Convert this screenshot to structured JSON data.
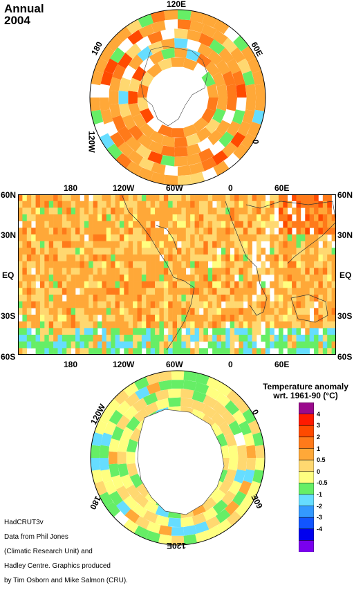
{
  "title": {
    "line1": "Annual",
    "line2": "2004"
  },
  "north_polar": {
    "labels": {
      "top": "120E",
      "upper_left": "180",
      "upper_right": "60E",
      "lower_left": "120W",
      "right": "0"
    }
  },
  "world_map": {
    "lat_labels": [
      "60N",
      "30N",
      "EQ",
      "30S",
      "60S"
    ],
    "lon_labels": [
      "180",
      "120W",
      "60W",
      "0",
      "60E"
    ]
  },
  "south_polar": {
    "labels": {
      "upper_left": "120W",
      "upper_right": "0",
      "lower_left": "180",
      "lower_right": "60E",
      "bottom": "120E"
    }
  },
  "legend": {
    "title_line1": "Temperature anomaly",
    "title_line2": "wrt. 1961-90  (°C)",
    "labels": [
      "4",
      "3",
      "2",
      "1",
      "0.5",
      "0",
      "-0.5",
      "-1",
      "-2",
      "-3",
      "-4"
    ],
    "colors": [
      "#9a0a8c",
      "#ff1a00",
      "#ff4a00",
      "#ff7a1a",
      "#ffa838",
      "#ffd870",
      "#ffff80",
      "#66ee66",
      "#66ddff",
      "#3399ff",
      "#1155ff",
      "#0000ee",
      "#7a00ee"
    ]
  },
  "credit": {
    "line1": "HadCRUT3v",
    "line2": "Data from Phil Jones",
    "line3": "(Climatic Research Unit) and",
    "line4": "Hadley Centre.  Graphics produced",
    "line5": "by Tim Osborn and Mike Salmon (CRU)."
  }
}
